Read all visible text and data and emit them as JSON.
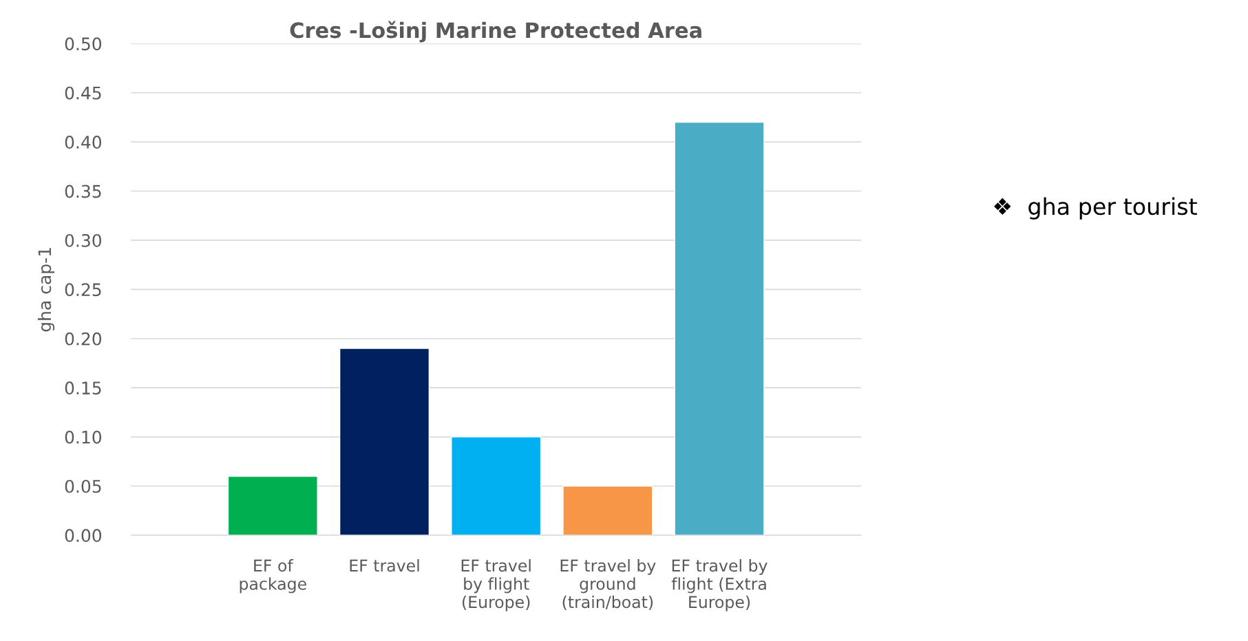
{
  "chart_data": {
    "type": "bar",
    "title": "Cres -Lošinj Marine Protected Area",
    "ylabel": "gha cap-1",
    "categories": [
      "EF of\npackage",
      "EF travel",
      "EF travel\nby flight\n(Europe)",
      "EF travel by\nground\n(train/boat)",
      "EF travel by\nflight (Extra\nEurope)"
    ],
    "values": [
      0.06,
      0.19,
      0.1,
      0.05,
      0.42
    ],
    "colors": [
      "#00b050",
      "#002060",
      "#00b0f0",
      "#f79646",
      "#4bacc6"
    ],
    "ylim": [
      0,
      0.5
    ],
    "yticks": [
      {
        "value": 0,
        "label": "0.00"
      },
      {
        "value": 0.05,
        "label": "0.05"
      },
      {
        "value": 0.1,
        "label": "0.10"
      },
      {
        "value": 0.15,
        "label": "0.15"
      },
      {
        "value": 0.2,
        "label": "0.20"
      },
      {
        "value": 0.25,
        "label": "0.25"
      },
      {
        "value": 0.3,
        "label": "0.30"
      },
      {
        "value": 0.35,
        "label": "0.35"
      },
      {
        "value": 0.4,
        "label": "0.40"
      },
      {
        "value": 0.45,
        "label": "0.45"
      },
      {
        "value": 0.5,
        "label": "0.50"
      }
    ],
    "grid": "y",
    "legend": false,
    "annotations": [
      "❖  gha per tourist"
    ]
  }
}
